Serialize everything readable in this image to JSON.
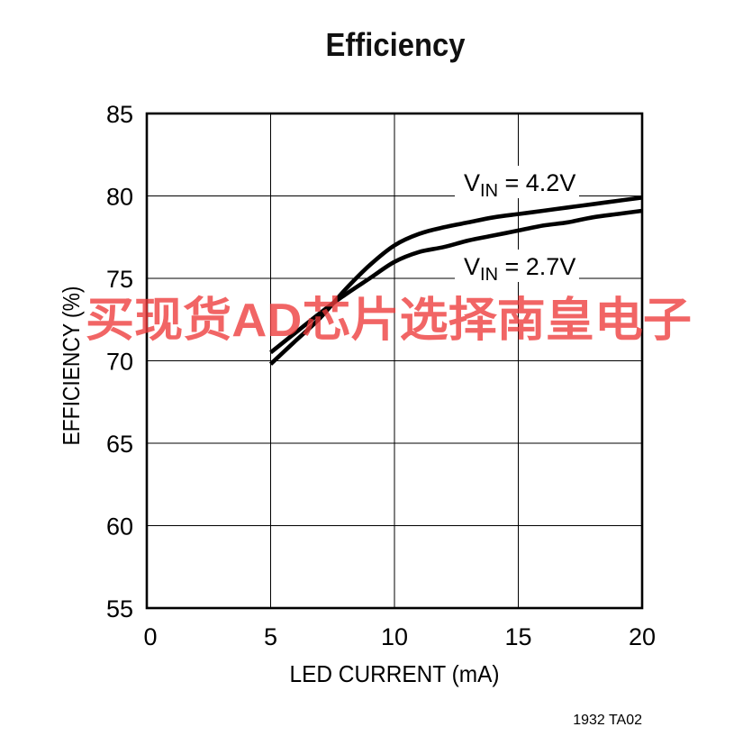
{
  "figure_code": "1932 TA02",
  "watermark": {
    "text": "买现货AD芯片选择南皇电子",
    "color": "#ee3a3a"
  },
  "colors": {
    "line": "#000000",
    "grid": "#000000",
    "background": "#ffffff"
  },
  "chart_data": {
    "type": "line",
    "title": "Efficiency",
    "xlabel": "LED CURRENT (mA)",
    "ylabel": "EFFICIENCY (%)",
    "xlim": [
      0,
      20
    ],
    "ylim": [
      55,
      85
    ],
    "xticks": [
      0,
      5,
      10,
      15,
      20
    ],
    "yticks": [
      55,
      60,
      65,
      70,
      75,
      80,
      85
    ],
    "grid": true,
    "legend": "inline",
    "series": [
      {
        "name": "VIN = 4.2V",
        "x": [
          5,
          6,
          7,
          8,
          9,
          10,
          11,
          12,
          13,
          14,
          15,
          16,
          17,
          18,
          19,
          20
        ],
        "y": [
          69.8,
          71.2,
          72.6,
          74.3,
          75.8,
          77.0,
          77.7,
          78.1,
          78.4,
          78.7,
          78.9,
          79.1,
          79.3,
          79.5,
          79.7,
          79.9
        ]
      },
      {
        "name": "VIN = 2.7V",
        "x": [
          5,
          6,
          7,
          8,
          9,
          10,
          11,
          12,
          13,
          14,
          15,
          16,
          17,
          18,
          19,
          20
        ],
        "y": [
          70.5,
          71.7,
          72.9,
          74.0,
          75.0,
          76.0,
          76.6,
          76.9,
          77.3,
          77.6,
          77.9,
          78.2,
          78.4,
          78.7,
          78.9,
          79.1
        ]
      }
    ]
  }
}
